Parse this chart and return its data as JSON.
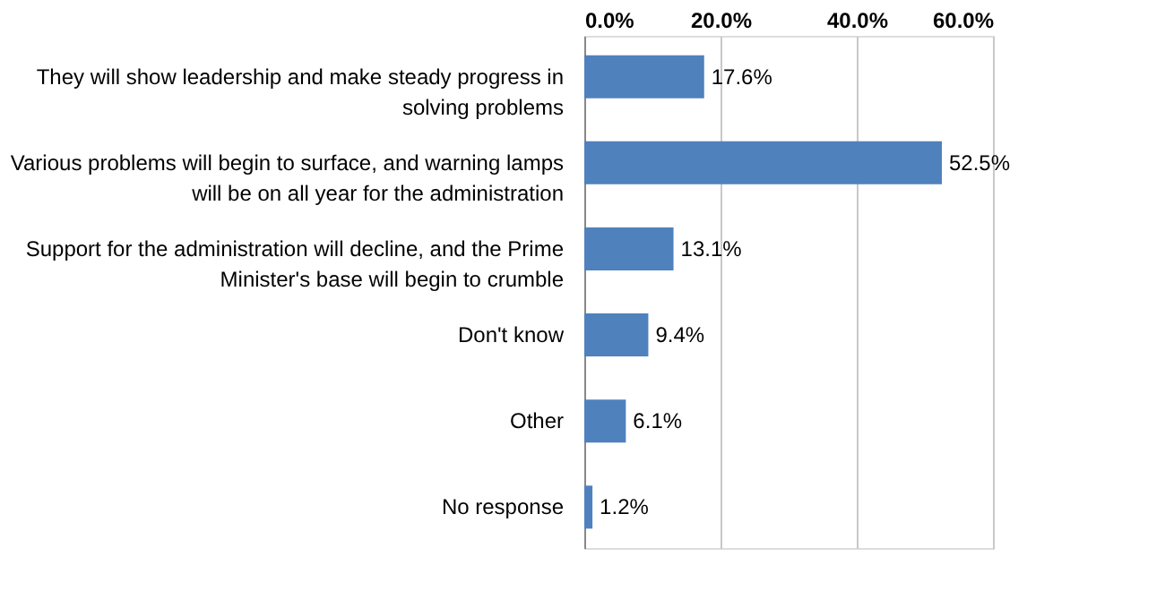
{
  "chart_data": {
    "type": "bar",
    "orientation": "horizontal",
    "categories": [
      "They will show leadership and make steady progress in solving problems",
      "Various problems will begin to surface, and warning lamps will be on all year for the administration",
      "Support for the administration will decline, and the Prime Minister's base will begin to crumble",
      "Don't know",
      "Other",
      "No response"
    ],
    "values": [
      17.6,
      52.5,
      13.1,
      9.4,
      6.1,
      1.2
    ],
    "value_labels": [
      "17.6%",
      "52.5%",
      "13.1%",
      "9.4%",
      "6.1%",
      "1.2%"
    ],
    "color": "#4f81bd",
    "xlim": [
      0,
      60
    ],
    "xticks": [
      {
        "value": 0,
        "label": "0.0%"
      },
      {
        "value": 20,
        "label": "20.0%"
      },
      {
        "value": 40,
        "label": "40.0%"
      },
      {
        "value": 60,
        "label": "60.0%"
      }
    ],
    "grid": "x"
  }
}
